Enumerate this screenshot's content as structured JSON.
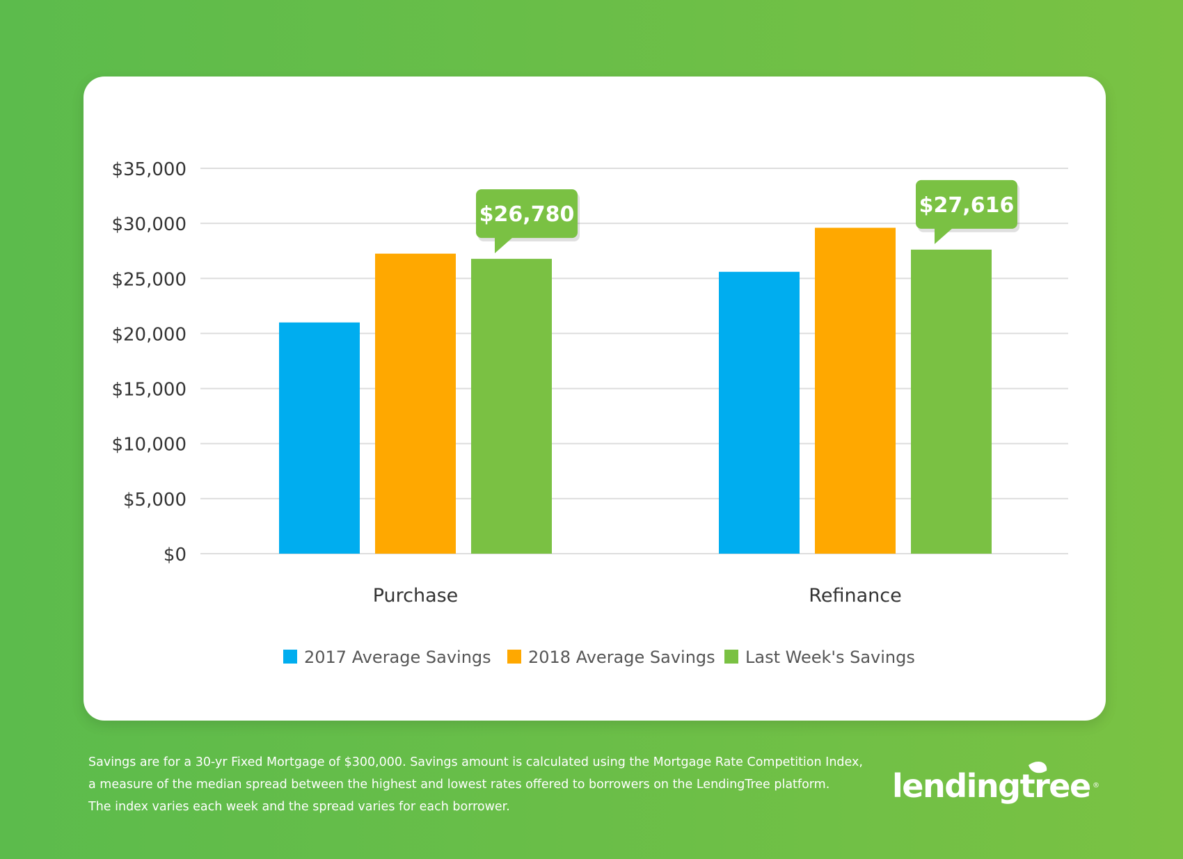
{
  "chart_data": {
    "type": "bar",
    "categories": [
      "Purchase",
      "Refinance"
    ],
    "series": [
      {
        "name": "2017 Average Savings",
        "color": "#00adef",
        "values": [
          21000,
          25600
        ]
      },
      {
        "name": "2018 Average Savings",
        "color": "#ffa800",
        "values": [
          27250,
          29600
        ]
      },
      {
        "name": "Last Week's Savings",
        "color": "#7ac143",
        "values": [
          26780,
          27616
        ]
      }
    ],
    "callouts": [
      {
        "category": "Purchase",
        "series": "Last Week's Savings",
        "label": "$26,780"
      },
      {
        "category": "Refinance",
        "series": "Last Week's Savings",
        "label": "$27,616"
      }
    ],
    "ylim": [
      0,
      35000
    ],
    "yticks": [
      "$0",
      "$5,000",
      "$10,000",
      "$15,000",
      "$20,000",
      "$25,000",
      "$30,000",
      "$35,000"
    ],
    "ytick_values": [
      0,
      5000,
      10000,
      15000,
      20000,
      25000,
      30000,
      35000
    ],
    "grid": true,
    "legend_position": "bottom",
    "title": "",
    "xlabel": "",
    "ylabel": ""
  },
  "footnote": {
    "lines": [
      "Savings are for a 30-yr Fixed Mortgage of $300,000. Savings amount is calculated using the Mortgage Rate Competition Index,",
      "a measure of the median spread between the highest and lowest rates offered to borrowers on the LendingTree platform.",
      "The index varies each week and the spread varies for each borrower."
    ]
  },
  "logo": {
    "text": "lendingtree",
    "mark": "®"
  },
  "colors": {
    "callout": "#7ac143",
    "grid": "#dddddd",
    "axis_text": "#333333"
  }
}
